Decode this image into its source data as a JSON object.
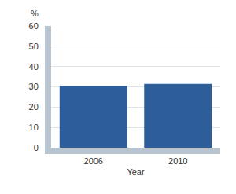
{
  "chart_data": {
    "type": "bar",
    "categories": [
      "2006",
      "2010"
    ],
    "values": [
      30.5,
      31.5
    ],
    "color": "#2e5e99",
    "x_label": "Year",
    "y_label": "%",
    "ylim": [
      0,
      60
    ],
    "yticks": [
      0,
      10,
      20,
      30,
      40,
      50,
      60
    ],
    "grid": true
  }
}
